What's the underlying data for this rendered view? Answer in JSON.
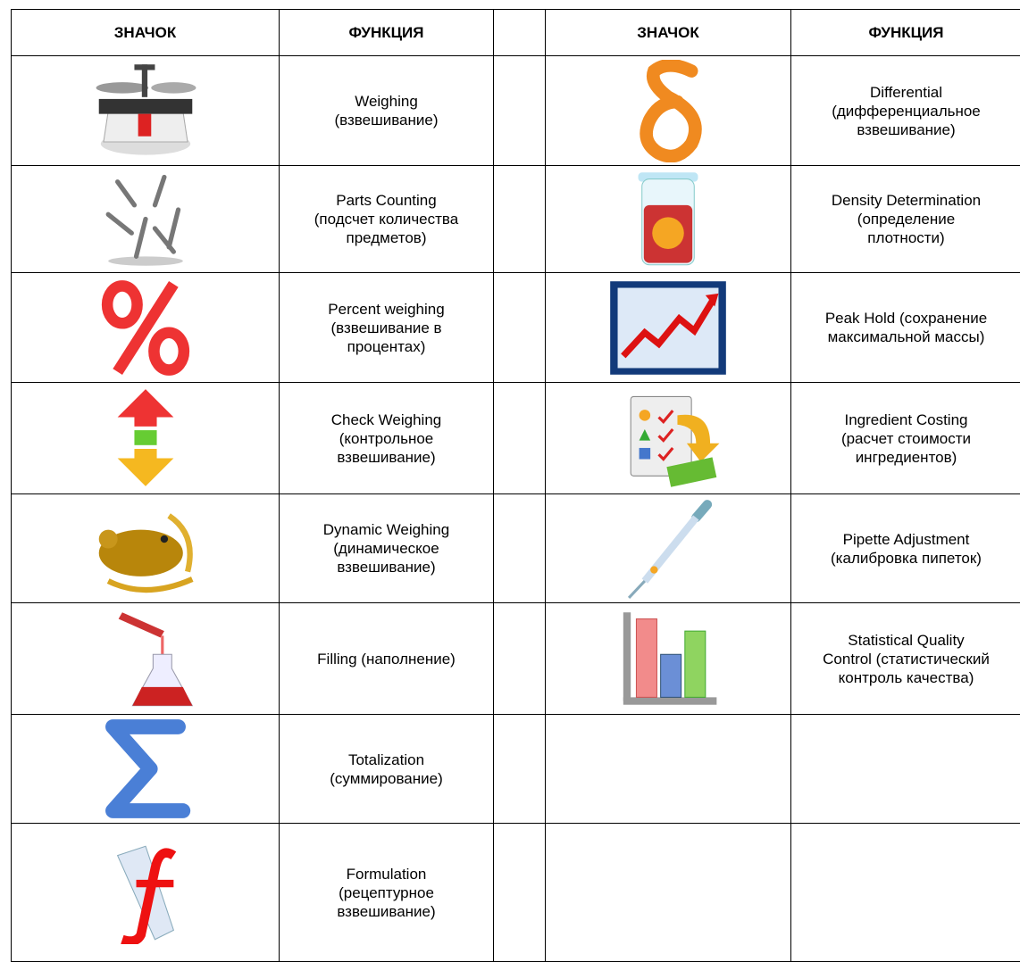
{
  "table": {
    "header": [
      "ЗНАЧОК",
      "ФУНКЦИЯ",
      "ЗНАЧОК",
      "ФУНКЦИЯ"
    ],
    "rows": [
      {
        "left": [
          "Weighing",
          "(взвешивание)"
        ],
        "right": [
          "Differential",
          "(дифференциальное",
          "взвешивание)"
        ]
      },
      {
        "left": [
          "Parts Counting",
          "(подсчет количества",
          "предметов)"
        ],
        "right": [
          "Density Determination",
          "(определение",
          "плотности)"
        ]
      },
      {
        "left": [
          "Percent weighing",
          "(взвешивание в",
          "процентах)"
        ],
        "right": [
          "Peak Hold (сохранение",
          "максимальной массы)"
        ]
      },
      {
        "left": [
          "Check Weighing",
          "(контрольное",
          "взвешивание)"
        ],
        "right": [
          "Ingredient Costing",
          "(расчет стоимости",
          "ингредиентов)"
        ]
      },
      {
        "left": [
          "Dynamic Weighing",
          "(динамическое",
          "взвешивание)"
        ],
        "right": [
          "Pipette Adjustment",
          "(калибровка пипеток)"
        ]
      },
      {
        "left": [
          "Filling (наполнение)"
        ],
        "right": [
          "Statistical Quality",
          "Control (статистический",
          "контроль качества)"
        ]
      },
      {
        "left": [
          "Totalization",
          "(суммирование)"
        ],
        "right": null
      },
      {
        "left": [
          "Formulation",
          "(рецептурное",
          "взвешивание)"
        ],
        "right": null
      }
    ]
  }
}
